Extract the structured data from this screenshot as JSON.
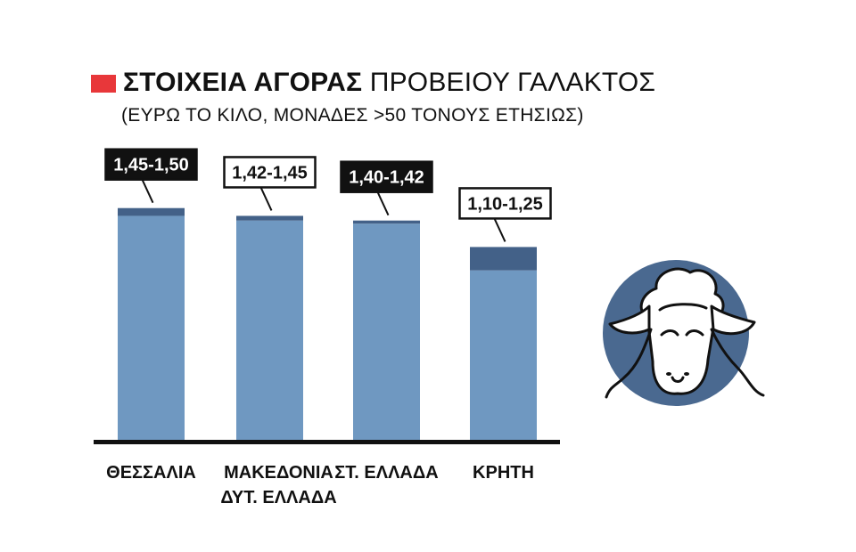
{
  "header": {
    "title_bold": "ΣΤΟΙΧΕΙΑ ΑΓΟΡΑΣ",
    "title_rest": "ΠΡΟΒΕΙΟΥ ΓΑΛΑΚΤΟΣ",
    "subtitle": "(ΕΥΡΩ ΤΟ ΚΙΛΟ, ΜΟΝΑΔΕΣ >50 ΤΟΝΟΥΣ ΕΤΗΣΙΩΣ)"
  },
  "colors": {
    "accent": "#e8373a",
    "bar_low": "#6f98c1",
    "bar_range": "#436188",
    "axis": "#111111",
    "sheep_circle": "#4a6990"
  },
  "chart_data": {
    "type": "bar",
    "stacked": true,
    "categories": [
      "ΘΕΣΣΑΛΙΑ",
      "ΜΑΚΕΔΟΝΙΑ ΔΥΤ. ΕΛΛΑΔΑ",
      "ΣΤ. ΕΛΛΑΔΑ",
      "ΚΡΗΤΗ"
    ],
    "category_lines": [
      [
        "ΘΕΣΣΑΛΙΑ"
      ],
      [
        "ΜΑΚΕΔΟΝΙΑ",
        "ΔΥΤ. ΕΛΛΑΔΑ"
      ],
      [
        "ΣΤ. ΕΛΛΑΔΑ"
      ],
      [
        "ΚΡΗΤΗ"
      ]
    ],
    "low": [
      1.45,
      1.42,
      1.4,
      1.1
    ],
    "high": [
      1.5,
      1.45,
      1.42,
      1.25
    ],
    "labels": [
      "1,45-1,50",
      "1,42-1,45",
      "1,40-1,42",
      "1,10-1,25"
    ],
    "label_style": [
      "dark",
      "light",
      "dark",
      "light"
    ],
    "ylim": [
      0,
      1.75
    ],
    "grid": false,
    "legend": "none"
  },
  "icon": {
    "name": "sheep-icon"
  }
}
